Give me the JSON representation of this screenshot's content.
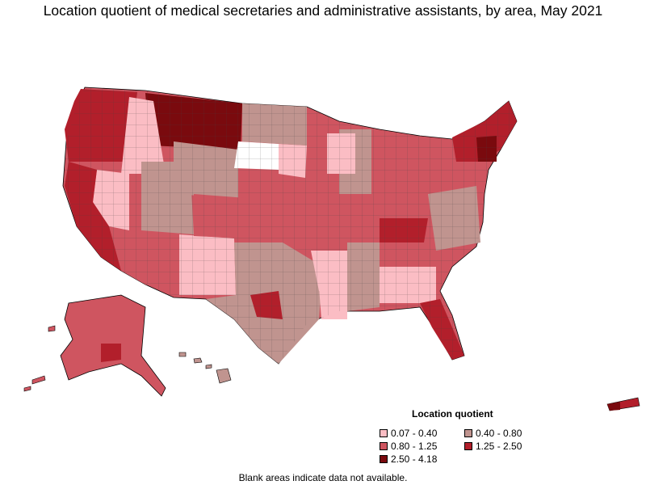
{
  "title": "Location quotient of medical secretaries and administrative assistants, by area, May 2021",
  "legend": {
    "title": "Location quotient",
    "items": [
      {
        "label": "0.07 - 0.40",
        "color": "#fbbdc4"
      },
      {
        "label": "0.40 - 0.80",
        "color": "#c0948f"
      },
      {
        "label": "0.80 - 1.25",
        "color": "#cf5560"
      },
      {
        "label": "1.25 - 2.50",
        "color": "#b21f2b"
      },
      {
        "label": "2.50 - 4.18",
        "color": "#7a0a0e"
      }
    ]
  },
  "footnote": "Blank areas indicate data not available."
}
